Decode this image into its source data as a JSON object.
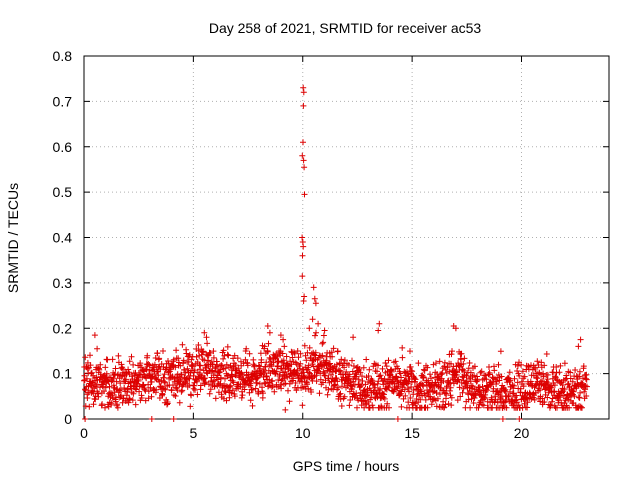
{
  "chart_data": {
    "type": "scatter",
    "title": "Day 258 of 2021, SRMTID for receiver ac53",
    "xlabel": "GPS time / hours",
    "ylabel": "SRMTID / TECUs",
    "xlim": [
      0,
      24
    ],
    "ylim": [
      0,
      0.8
    ],
    "xticks": [
      0,
      5,
      10,
      15,
      20
    ],
    "xtick_labels": [
      "0",
      "5",
      "10",
      "15",
      "20"
    ],
    "yticks": [
      0,
      0.1,
      0.2,
      0.3,
      0.4,
      0.5,
      0.6,
      0.7,
      0.8
    ],
    "ytick_labels": [
      "0",
      "0.1",
      "0.2",
      "0.3",
      "0.4",
      "0.5",
      "0.6",
      "0.7",
      "0.8"
    ],
    "grid": true,
    "colors": {
      "series": "#dd0000",
      "grid": "#b0b0b0",
      "axis": "#000000"
    },
    "series": [
      {
        "name": "SRMTID",
        "marker": "plus",
        "baseline_trend": [
          [
            0.0,
            0.075
          ],
          [
            0.5,
            0.085
          ],
          [
            1.0,
            0.075
          ],
          [
            1.5,
            0.07
          ],
          [
            2.0,
            0.075
          ],
          [
            2.5,
            0.07
          ],
          [
            3.0,
            0.08
          ],
          [
            3.5,
            0.09
          ],
          [
            4.0,
            0.09
          ],
          [
            4.5,
            0.095
          ],
          [
            5.0,
            0.1
          ],
          [
            5.5,
            0.11
          ],
          [
            6.0,
            0.1
          ],
          [
            6.5,
            0.09
          ],
          [
            7.0,
            0.09
          ],
          [
            7.5,
            0.095
          ],
          [
            8.0,
            0.1
          ],
          [
            8.5,
            0.11
          ],
          [
            9.0,
            0.105
          ],
          [
            9.5,
            0.1
          ],
          [
            10.0,
            0.095
          ],
          [
            10.5,
            0.12
          ],
          [
            11.0,
            0.11
          ],
          [
            11.5,
            0.095
          ],
          [
            12.0,
            0.085
          ],
          [
            12.5,
            0.075
          ],
          [
            13.0,
            0.06
          ],
          [
            13.5,
            0.065
          ],
          [
            14.0,
            0.07
          ],
          [
            14.5,
            0.075
          ],
          [
            15.0,
            0.065
          ],
          [
            15.5,
            0.06
          ],
          [
            16.0,
            0.065
          ],
          [
            16.5,
            0.075
          ],
          [
            17.0,
            0.1
          ],
          [
            17.5,
            0.08
          ],
          [
            18.0,
            0.065
          ],
          [
            18.5,
            0.06
          ],
          [
            19.0,
            0.065
          ],
          [
            19.5,
            0.06
          ],
          [
            20.0,
            0.06
          ],
          [
            20.5,
            0.07
          ],
          [
            21.0,
            0.075
          ],
          [
            21.5,
            0.06
          ],
          [
            22.0,
            0.055
          ],
          [
            22.5,
            0.06
          ],
          [
            23.0,
            0.065
          ]
        ],
        "peaks": [
          [
            10.02,
            0.73
          ],
          [
            10.05,
            0.72
          ],
          [
            10.03,
            0.69
          ],
          [
            10.01,
            0.61
          ],
          [
            9.98,
            0.58
          ],
          [
            10.04,
            0.57
          ],
          [
            10.06,
            0.555
          ],
          [
            10.08,
            0.495
          ],
          [
            9.97,
            0.4
          ],
          [
            10.0,
            0.39
          ],
          [
            10.02,
            0.38
          ],
          [
            9.99,
            0.36
          ],
          [
            9.98,
            0.315
          ],
          [
            10.06,
            0.27
          ],
          [
            10.04,
            0.26
          ],
          [
            10.5,
            0.29
          ],
          [
            10.55,
            0.265
          ],
          [
            10.6,
            0.255
          ],
          [
            10.45,
            0.22
          ],
          [
            10.7,
            0.21
          ],
          [
            10.3,
            0.2
          ],
          [
            11.0,
            0.195
          ],
          [
            8.4,
            0.205
          ],
          [
            8.5,
            0.19
          ],
          [
            13.5,
            0.21
          ],
          [
            13.45,
            0.195
          ],
          [
            16.9,
            0.205
          ],
          [
            17.0,
            0.2
          ],
          [
            0.5,
            0.185
          ],
          [
            5.5,
            0.19
          ],
          [
            5.6,
            0.18
          ],
          [
            22.7,
            0.175
          ],
          [
            22.6,
            0.16
          ],
          [
            9.0,
            0.185
          ],
          [
            9.1,
            0.175
          ],
          [
            12.3,
            0.18
          ],
          [
            0.6,
            0.155
          ]
        ],
        "low_points": [
          [
            0.05,
            0.0
          ],
          [
            3.1,
            0.0
          ],
          [
            4.1,
            0.0
          ],
          [
            14.35,
            0.0
          ],
          [
            19.15,
            0.0
          ],
          [
            19.9,
            0.0
          ],
          [
            9.2,
            0.02
          ]
        ]
      }
    ]
  }
}
